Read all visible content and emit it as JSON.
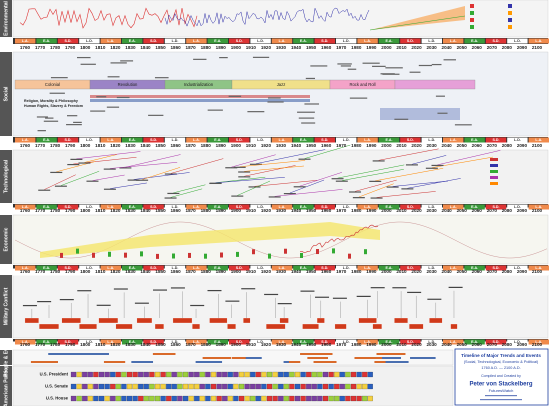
{
  "sections": [
    "Environmental",
    "Social",
    "Technological",
    "Economic",
    "Military Conflict",
    "People & Events",
    "American Politics"
  ],
  "years": [
    1760,
    1770,
    1780,
    1790,
    1800,
    1810,
    1820,
    1830,
    1840,
    1850,
    1860,
    1870,
    1880,
    1890,
    1900,
    1910,
    1920,
    1930,
    1940,
    1950,
    1960,
    1970,
    1980,
    1990,
    2000,
    2010,
    2020,
    2030,
    2040,
    2050,
    2060,
    2070,
    2080,
    2090,
    2100
  ],
  "cycle_labels": [
    "L.A.",
    "E.A.",
    "S.D.",
    "L.D."
  ],
  "eras": [
    "Colonial",
    "Revolution",
    "Industrialization",
    "Jazz",
    "Rock and Roll"
  ],
  "social_labels": [
    "Religion, Morality & Philosophy",
    "Human Rights, Slavery & Freedom"
  ],
  "politics_rows": [
    "U.S. President",
    "U.S. Senate",
    "U.S. House"
  ],
  "title_block": {
    "title": "Timeline of Major Trends and Events",
    "subtitle": "(Social, Technological, Economic & Political)",
    "span": "1760 A.D. — 2100 A.D.",
    "credit": "Compiled and Created by",
    "author": "Peter von Stackelberg",
    "org": "FuturesWatch"
  }
}
